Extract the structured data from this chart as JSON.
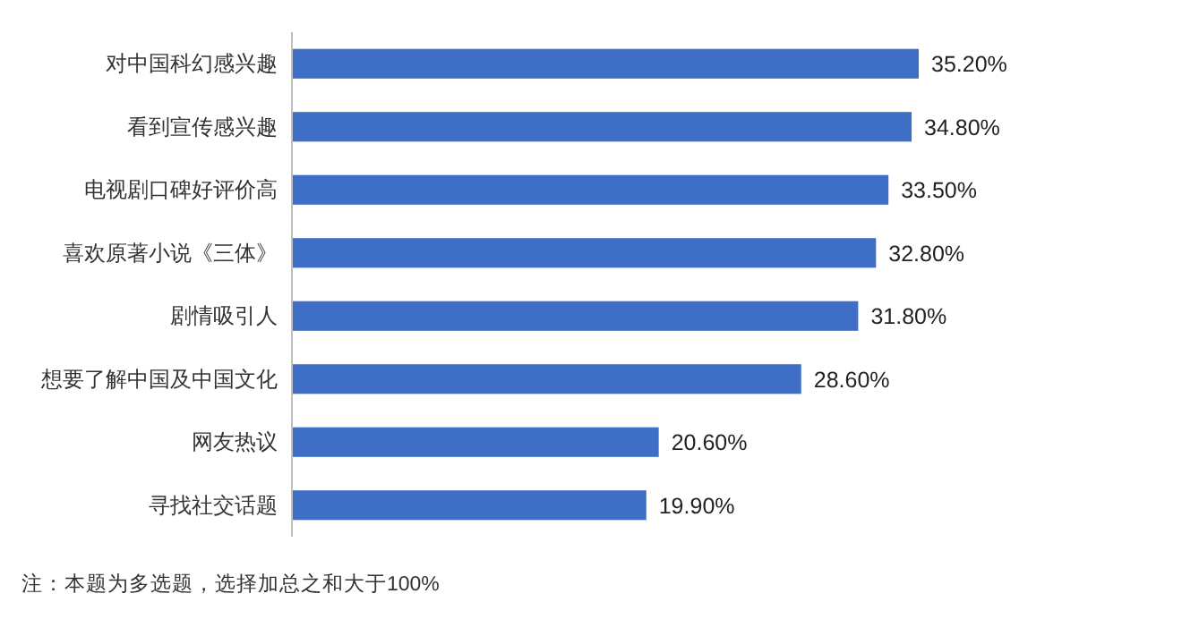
{
  "chart_data": {
    "type": "bar",
    "orientation": "horizontal",
    "categories": [
      "对中国科幻感兴趣",
      "看到宣传感兴趣",
      "电视剧口碑好评价高",
      "喜欢原著小说《三体》",
      "剧情吸引人",
      "想要了解中国及中国文化",
      "网友热议",
      "寻找社交话题"
    ],
    "values": [
      35.2,
      34.8,
      33.5,
      32.8,
      31.8,
      28.6,
      20.6,
      19.9
    ],
    "value_labels": [
      "35.20%",
      "34.80%",
      "33.50%",
      "32.80%",
      "31.80%",
      "28.60%",
      "20.60%",
      "19.90%"
    ],
    "color": "#3f6ec6",
    "annotations": [
      "注：本题为多选题，选择加总之和大于100%"
    ]
  }
}
